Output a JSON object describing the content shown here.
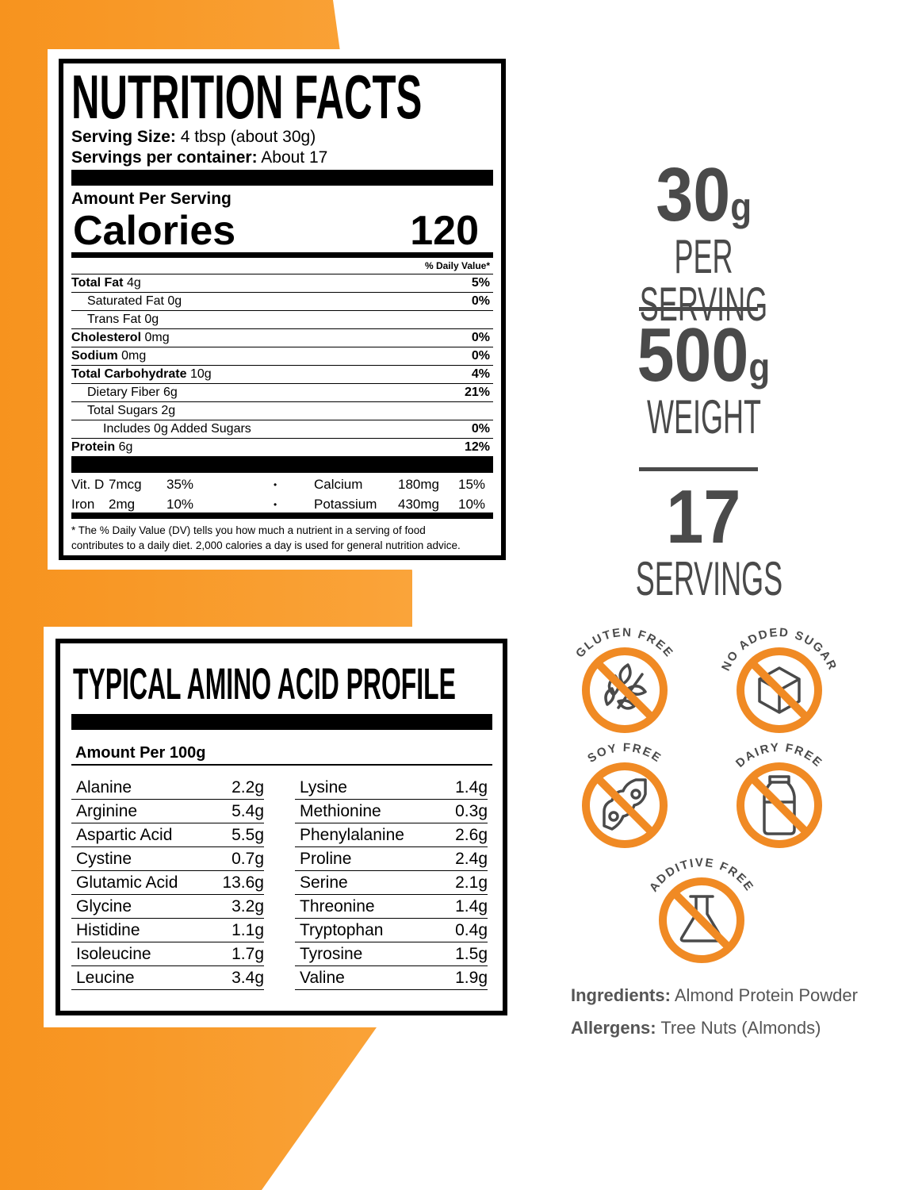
{
  "colors": {
    "orange": "#f7931e",
    "icon_ring": "#f08a24",
    "icon_glyph": "#4a4a4a",
    "text_gray": "#4a4a4a"
  },
  "nutrition": {
    "title": "NUTRITION FACTS",
    "serving_size_label": "Serving Size:",
    "serving_size_value": "4 tbsp (about 30g)",
    "servings_label": "Servings per container:",
    "servings_value": "About 17",
    "amount_per_serving": "Amount Per Serving",
    "calories_label": "Calories",
    "calories_value": "120",
    "dv_header": "% Daily Value*",
    "rows": [
      {
        "name": "Total Fat",
        "amount": "4g",
        "dv": "5%",
        "bold": true
      },
      {
        "name": "Saturated Fat",
        "amount": "0g",
        "dv": "0%",
        "indent": 1
      },
      {
        "name": "Trans Fat",
        "amount": "0g",
        "dv": "",
        "indent": 1
      },
      {
        "name": "Cholesterol",
        "amount": "0mg",
        "dv": "0%",
        "bold": true
      },
      {
        "name": "Sodium",
        "amount": "0mg",
        "dv": "0%",
        "bold": true
      },
      {
        "name": "Total Carbohydrate",
        "amount": "10g",
        "dv": "4%",
        "bold": true
      },
      {
        "name": "Dietary Fiber",
        "amount": "6g",
        "dv": "21%",
        "indent": 1
      },
      {
        "name": "Total Sugars",
        "amount": "2g",
        "dv": "",
        "indent": 1
      },
      {
        "name": "Includes 0g Added Sugars",
        "amount": "",
        "dv": "0%",
        "indent": 2
      },
      {
        "name": "Protein",
        "amount": "6g",
        "dv": "12%",
        "bold": true
      }
    ],
    "vitamins": [
      {
        "name": "Vit. D",
        "amount": "7mcg",
        "dv": "35%",
        "name2": "Calcium",
        "amount2": "180mg",
        "dv2": "15%"
      },
      {
        "name": "Iron",
        "amount": "2mg",
        "dv": "10%",
        "name2": "Potassium",
        "amount2": "430mg",
        "dv2": "10%"
      }
    ],
    "bullet": "•",
    "footnote_1": "* The % Daily Value (DV) tells you how much a nutrient in a serving of food",
    "footnote_2": "contributes to a daily diet. 2,000 calories a day is used for general nutrition advice."
  },
  "amino": {
    "title": "TYPICAL AMINO ACID PROFILE",
    "amount_label": "Amount Per 100g",
    "left": [
      [
        "Alanine",
        "2.2g"
      ],
      [
        "Arginine",
        "5.4g"
      ],
      [
        "Aspartic Acid",
        "5.5g"
      ],
      [
        "Cystine",
        "0.7g"
      ],
      [
        "Glutamic Acid",
        "13.6g"
      ],
      [
        "Glycine",
        "3.2g"
      ],
      [
        "Histidine",
        "1.1g"
      ],
      [
        "Isoleucine",
        "1.7g"
      ],
      [
        "Leucine",
        "3.4g"
      ]
    ],
    "right": [
      [
        "Lysine",
        "1.4g"
      ],
      [
        "Methionine",
        "0.3g"
      ],
      [
        "Phenylalanine",
        "2.6g"
      ],
      [
        "Proline",
        "2.4g"
      ],
      [
        "Serine",
        "2.1g"
      ],
      [
        "Threonine",
        "1.4g"
      ],
      [
        "Tryptophan",
        "0.4g"
      ],
      [
        "Tyrosine",
        "1.5g"
      ],
      [
        "Valine",
        "1.9g"
      ]
    ]
  },
  "stats": [
    {
      "value": "30",
      "unit": "g",
      "label": "PER SERVING"
    },
    {
      "value": "500",
      "unit": "g",
      "label": "WEIGHT"
    },
    {
      "value": "17",
      "unit": "",
      "label": "SERVINGS"
    }
  ],
  "badges": [
    {
      "label": "GLUTEN FREE",
      "icon": "wheat-icon"
    },
    {
      "label": "NO ADDED SUGAR",
      "icon": "sugar-cube-icon"
    },
    {
      "label": "SOY FREE",
      "icon": "soybean-icon"
    },
    {
      "label": "DAIRY FREE",
      "icon": "milk-bottle-icon"
    },
    {
      "label": "ADDITIVE FREE",
      "icon": "flask-icon"
    }
  ],
  "ingredients": {
    "label": "Ingredients:",
    "value": "Almond Protein Powder"
  },
  "allergens": {
    "label": "Allergens:",
    "value": "Tree Nuts (Almonds)"
  }
}
